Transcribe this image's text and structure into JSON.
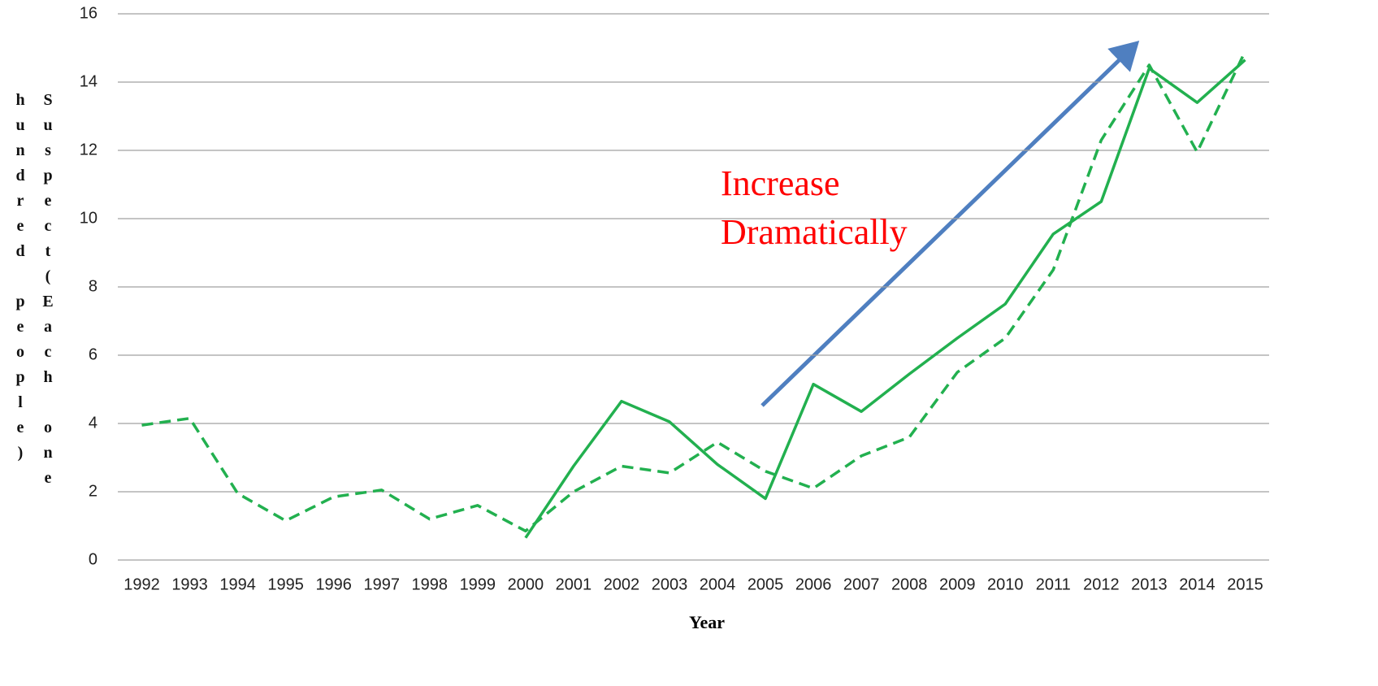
{
  "chart_data": {
    "type": "line",
    "categories": [
      "1992",
      "1993",
      "1994",
      "1995",
      "1996",
      "1997",
      "1998",
      "1999",
      "2000",
      "2001",
      "2002",
      "2003",
      "2004",
      "2005",
      "2006",
      "2007",
      "2008",
      "2009",
      "2010",
      "2011",
      "2012",
      "2013",
      "2014",
      "2015"
    ],
    "series": [
      {
        "color": "#22b04f",
        "dash": true,
        "values": [
          3.95,
          4.15,
          1.95,
          1.15,
          1.85,
          2.05,
          1.2,
          1.6,
          0.85,
          2.0,
          2.75,
          2.55,
          3.45,
          2.6,
          2.1,
          3.05,
          3.6,
          5.5,
          6.5,
          8.5,
          12.3,
          14.5,
          11.95,
          14.9
        ]
      },
      {
        "color": "#22b04f",
        "dash": false,
        "values": [
          null,
          null,
          null,
          null,
          null,
          null,
          null,
          null,
          0.65,
          2.75,
          4.65,
          4.05,
          2.8,
          1.8,
          5.15,
          4.35,
          5.45,
          6.5,
          7.5,
          9.55,
          10.5,
          14.4,
          13.4,
          14.65
        ]
      }
    ],
    "ylim": [
      0,
      16
    ],
    "yticks": [
      0,
      2,
      4,
      6,
      8,
      10,
      12,
      14,
      16
    ],
    "grid": true,
    "x_label": "Year",
    "y_label": "Suspect(Each one hundred people)",
    "annotation": "Increase Dramatically"
  }
}
